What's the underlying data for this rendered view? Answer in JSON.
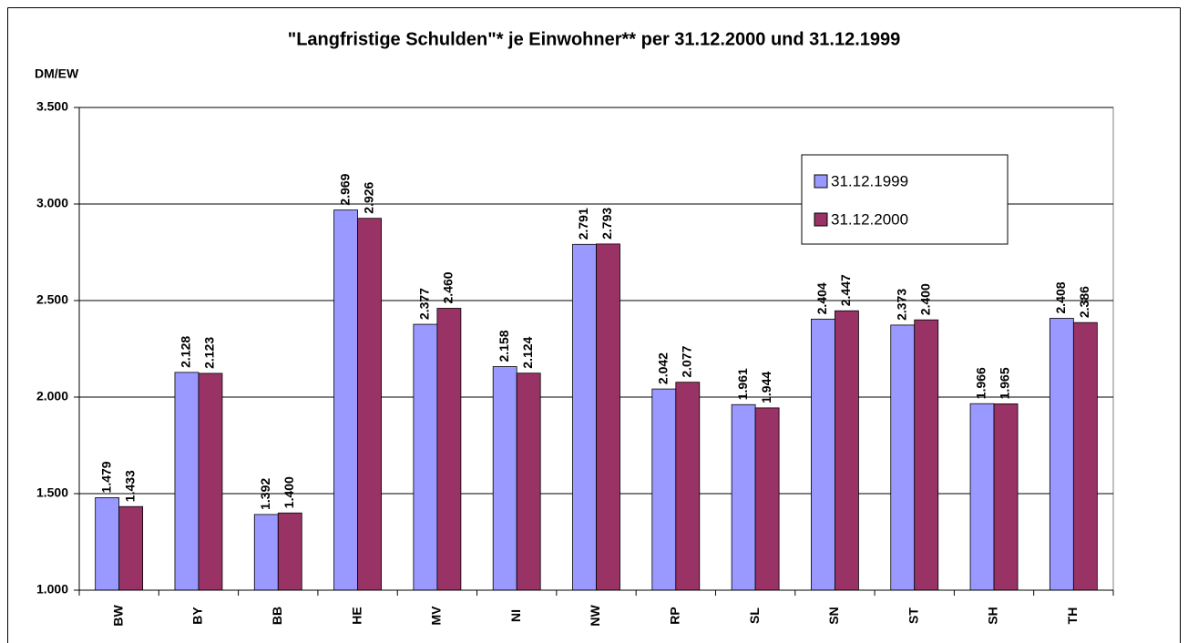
{
  "chart_data": {
    "type": "bar",
    "title": "\"Langfristige Schulden\"* je Einwohner** per 31.12.2000 und 31.12.1999",
    "y_label": "DM/EW",
    "categories": [
      "BW",
      "BY",
      "BB",
      "HE",
      "MV",
      "NI",
      "NW",
      "RP",
      "SL",
      "SN",
      "ST",
      "SH",
      "TH"
    ],
    "series": [
      {
        "name": "31.12.1999",
        "color": "#9999ff",
        "values": [
          1479,
          2128,
          1392,
          2969,
          2377,
          2158,
          2791,
          2042,
          1961,
          2404,
          2373,
          1966,
          2408
        ],
        "value_labels": [
          "1.479",
          "2.128",
          "1.392",
          "2.969",
          "2.377",
          "2.158",
          "2.791",
          "2.042",
          "1.961",
          "2.404",
          "2.373",
          "1.966",
          "2.408"
        ]
      },
      {
        "name": "31.12.2000",
        "color": "#993366",
        "values": [
          1433,
          2123,
          1400,
          2926,
          2460,
          2124,
          2793,
          2077,
          1944,
          2447,
          2400,
          1965,
          2386
        ],
        "value_labels": [
          "1.433",
          "2.123",
          "1.400",
          "2.926",
          "2.460",
          "2.124",
          "2.793",
          "2.077",
          "1.944",
          "2.447",
          "2.400",
          "1.965",
          "2.386"
        ]
      }
    ],
    "ylim": [
      1000,
      3500
    ],
    "yticks": [
      {
        "value": 1000,
        "label": "1.000"
      },
      {
        "value": 1500,
        "label": "1.500"
      },
      {
        "value": 2000,
        "label": "2.000"
      },
      {
        "value": 2500,
        "label": "2.500"
      },
      {
        "value": 3000,
        "label": "3.000"
      },
      {
        "value": 3500,
        "label": "3.500"
      }
    ],
    "grid": true
  }
}
